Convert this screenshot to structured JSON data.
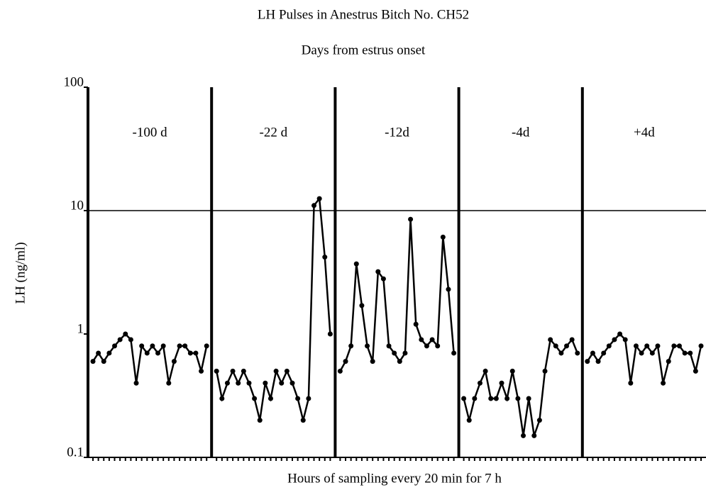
{
  "chart_data": {
    "type": "line",
    "title": "LH Pulses in Anestrus Bitch No. CH52",
    "subtitle": "Days from estrus onset",
    "xlabel": "Hours of sampling every 20 min for 7 h",
    "ylabel": "LH (ng/ml)",
    "log_scale": true,
    "ylim": [
      0.1,
      100
    ],
    "yticks": [
      0.1,
      1,
      10,
      100
    ],
    "hline": 10,
    "color": "#000000",
    "panels": [
      {
        "name": "-100 d",
        "values": [
          0.6,
          0.7,
          0.6,
          0.7,
          0.8,
          0.9,
          1.0,
          0.9,
          0.4,
          0.8,
          0.7,
          0.8,
          0.7,
          0.8,
          0.4,
          0.6,
          0.8,
          0.8,
          0.7,
          0.7,
          0.5,
          0.8
        ]
      },
      {
        "name": "-22 d",
        "values": [
          0.5,
          0.3,
          0.4,
          0.5,
          0.4,
          0.5,
          0.4,
          0.3,
          0.2,
          0.4,
          0.3,
          0.5,
          0.4,
          0.5,
          0.4,
          0.3,
          0.2,
          0.3,
          11,
          12.5,
          4.2,
          1.0
        ]
      },
      {
        "name": "-12d",
        "values": [
          0.5,
          0.6,
          0.8,
          3.7,
          1.7,
          0.8,
          0.6,
          3.2,
          2.8,
          0.8,
          0.7,
          0.6,
          0.7,
          8.5,
          1.2,
          0.9,
          0.8,
          0.9,
          0.8,
          6.1,
          2.3,
          0.7
        ]
      },
      {
        "name": "-4d",
        "values": [
          0.3,
          0.2,
          0.3,
          0.4,
          0.5,
          0.3,
          0.3,
          0.4,
          0.3,
          0.5,
          0.3,
          0.15,
          0.3,
          0.15,
          0.2,
          0.5,
          0.9,
          0.8,
          0.7,
          0.8,
          0.9,
          0.7
        ]
      },
      {
        "name": "+4d",
        "values": [
          0.6,
          0.7,
          0.6,
          0.7,
          0.8,
          0.9,
          1.0,
          0.9,
          0.4,
          0.8,
          0.7,
          0.8,
          0.7,
          0.8,
          0.4,
          0.6,
          0.8,
          0.8,
          0.7,
          0.7,
          0.5,
          0.8
        ]
      }
    ]
  }
}
